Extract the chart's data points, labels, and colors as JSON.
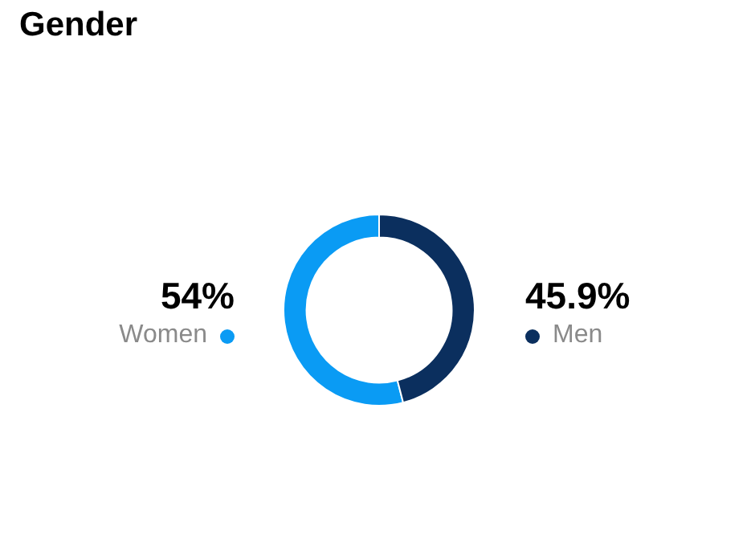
{
  "chart_data": {
    "type": "donut",
    "title": "Gender",
    "categories": [
      "Women",
      "Men"
    ],
    "values": [
      54,
      45.9
    ],
    "colors": [
      "#0a9bf4",
      "#0b2f5e"
    ],
    "value_labels": [
      "54%",
      "45.9%"
    ]
  }
}
